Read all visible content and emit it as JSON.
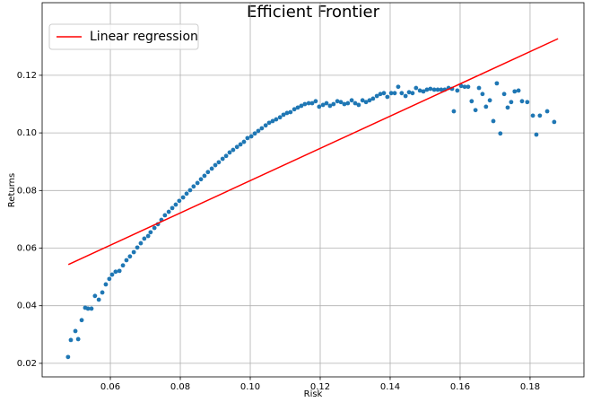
{
  "chart_data": {
    "type": "scatter",
    "title": "Efficient Frontier",
    "x_label": "Risk",
    "y_label": "Returns",
    "xlim": [
      0.0405,
      0.1954
    ],
    "ylim": [
      0.0153,
      0.1452
    ],
    "xticks": [
      0.06,
      0.08,
      {
        "value": 0.1,
        "label": "0.10"
      },
      0.12,
      0.14,
      0.16,
      0.18
    ],
    "yticks": [
      0.02,
      0.04,
      0.06,
      0.08,
      {
        "value": 0.1,
        "label": "0.10"
      },
      0.12
    ],
    "grid": true,
    "legend": "upper left",
    "series": [
      {
        "type": "scatter",
        "color": "#1f77b4",
        "x": [
          0.0479,
          0.0487,
          0.05,
          0.0508,
          0.0518,
          0.0528,
          0.0536,
          0.0546,
          0.0556,
          0.0567,
          0.0577,
          0.0587,
          0.0597,
          0.0605,
          0.0615,
          0.0626,
          0.0636,
          0.0646,
          0.0656,
          0.0667,
          0.0677,
          0.0687,
          0.0697,
          0.0708,
          0.0715,
          0.0726,
          0.0736,
          0.0746,
          0.0756,
          0.0767,
          0.0777,
          0.0787,
          0.0797,
          0.0808,
          0.0818,
          0.0828,
          0.0838,
          0.0849,
          0.0859,
          0.0869,
          0.0879,
          0.089,
          0.09,
          0.091,
          0.0921,
          0.0931,
          0.0941,
          0.0951,
          0.0962,
          0.0972,
          0.0982,
          0.0992,
          0.1003,
          0.1013,
          0.1023,
          0.1033,
          0.1044,
          0.1054,
          0.1064,
          0.1074,
          0.1085,
          0.1095,
          0.1105,
          0.1115,
          0.1126,
          0.1136,
          0.1146,
          0.1156,
          0.1167,
          0.1177,
          0.1187,
          0.1197,
          0.1208,
          0.1218,
          0.1228,
          0.1238,
          0.1249,
          0.1259,
          0.1269,
          0.1279,
          0.129,
          0.13,
          0.131,
          0.1321,
          0.1331,
          0.1341,
          0.1351,
          0.1362,
          0.1372,
          0.1382,
          0.1392,
          0.1403,
          0.1413,
          0.1423,
          0.1433,
          0.1444,
          0.1454,
          0.1464,
          0.1474,
          0.1485,
          0.1495,
          0.1505,
          0.1515,
          0.1526,
          0.1536,
          0.1546,
          0.1556,
          0.1567,
          0.1577,
          0.1582,
          0.1592,
          0.1603,
          0.1613,
          0.1623,
          0.1633,
          0.1644,
          0.1654,
          0.1664,
          0.1674,
          0.1685,
          0.1695,
          0.1705,
          0.1715,
          0.1726,
          0.1736,
          0.1746,
          0.1756,
          0.1767,
          0.1777,
          0.1792,
          0.1808,
          0.1818,
          0.1828,
          0.1849,
          0.1869
        ],
        "values": [
          0.0222,
          0.0281,
          0.0312,
          0.0284,
          0.035,
          0.0393,
          0.039,
          0.039,
          0.0434,
          0.0421,
          0.0446,
          0.0474,
          0.0493,
          0.0508,
          0.0518,
          0.0521,
          0.054,
          0.0558,
          0.0571,
          0.0586,
          0.0602,
          0.0617,
          0.0633,
          0.0642,
          0.0655,
          0.067,
          0.0683,
          0.0698,
          0.0714,
          0.0726,
          0.0739,
          0.0751,
          0.0764,
          0.0776,
          0.0789,
          0.0801,
          0.0814,
          0.0826,
          0.0839,
          0.0851,
          0.0864,
          0.0876,
          0.0888,
          0.0898,
          0.091,
          0.092,
          0.0932,
          0.0941,
          0.0951,
          0.096,
          0.0969,
          0.0982,
          0.0988,
          0.0998,
          0.1007,
          0.1016,
          0.1026,
          0.1035,
          0.1041,
          0.1047,
          0.1054,
          0.1063,
          0.1069,
          0.1072,
          0.1082,
          0.1088,
          0.1094,
          0.11,
          0.1103,
          0.1103,
          0.111,
          0.1091,
          0.1097,
          0.1103,
          0.1094,
          0.11,
          0.111,
          0.1107,
          0.11,
          0.1103,
          0.1113,
          0.1103,
          0.1097,
          0.1113,
          0.1107,
          0.1113,
          0.1119,
          0.1128,
          0.1135,
          0.1138,
          0.1125,
          0.1138,
          0.1138,
          0.116,
          0.1138,
          0.1128,
          0.1141,
          0.1138,
          0.1156,
          0.1147,
          0.1144,
          0.115,
          0.1153,
          0.115,
          0.115,
          0.115,
          0.115,
          0.1156,
          0.1153,
          0.1075,
          0.1147,
          0.1163,
          0.116,
          0.116,
          0.111,
          0.1079,
          0.1156,
          0.1135,
          0.1091,
          0.1113,
          0.1041,
          0.1172,
          0.0998,
          0.1135,
          0.1088,
          0.1107,
          0.1144,
          0.1147,
          0.111,
          0.1107,
          0.106,
          0.0994,
          0.106,
          0.1075,
          0.1038
        ]
      },
      {
        "type": "line",
        "name": "Linear regression",
        "color": "#ff0000",
        "x": [
          0.048,
          0.188
        ],
        "values": [
          0.0543,
          0.1327
        ]
      }
    ]
  }
}
